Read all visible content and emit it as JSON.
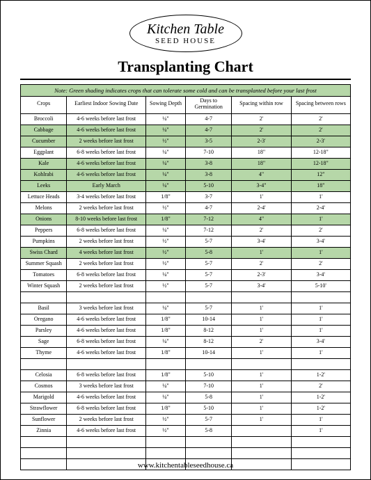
{
  "logo": {
    "top": "Kitchen Table",
    "bottom": "SEED HOUSE"
  },
  "title": "Transplanting Chart",
  "note": "Note: Green shading indicates crops that can tolerate some cold and can be transplanted before your last frost",
  "columns": [
    "Crops",
    "Earliest Indoor Sowing Date",
    "Sowing Depth",
    "Days to Germination",
    "Spacing within row",
    "Spacing between rows"
  ],
  "highlight_color": "#b6d7a8",
  "rows": [
    {
      "hl": false,
      "c": [
        "Broccoli",
        "4-6 weeks before last frost",
        "¼\"",
        "4-7",
        "2'",
        "2'"
      ]
    },
    {
      "hl": true,
      "c": [
        "Cabbage",
        "4-6 weeks before last frost",
        "¼\"",
        "4-7",
        "2'",
        "2'"
      ]
    },
    {
      "hl": true,
      "c": [
        "Cucumber",
        "2 weeks before last frost",
        "½\"",
        "3-5",
        "2-3'",
        "2-3'"
      ]
    },
    {
      "hl": false,
      "c": [
        "Eggplant",
        "6-8 weeks before last frost",
        "¼\"",
        "7-10",
        "18\"",
        "12-18\""
      ]
    },
    {
      "hl": true,
      "c": [
        "Kale",
        "4-6 weeks before last frost",
        "¼\"",
        "3-8",
        "18\"",
        "12-18\""
      ]
    },
    {
      "hl": true,
      "c": [
        "Kohlrabi",
        "4-6 weeks before last frost",
        "¼\"",
        "3-8",
        "4\"",
        "12\""
      ]
    },
    {
      "hl": true,
      "c": [
        "Leeks",
        "Early March",
        "¼\"",
        "5-10",
        "3-4\"",
        "18\""
      ]
    },
    {
      "hl": false,
      "c": [
        "Lettuce Heads",
        "3-4 weeks before last frost",
        "1/8\"",
        "3-7",
        "1'",
        "1'"
      ]
    },
    {
      "hl": false,
      "c": [
        "Melons",
        "2 weeks before last frost",
        "½\"",
        "4-7",
        "2-4'",
        "2-4'"
      ]
    },
    {
      "hl": true,
      "c": [
        "Onions",
        "8-10 weeks before last frost",
        "1/8\"",
        "7-12",
        "4\"",
        "1'"
      ]
    },
    {
      "hl": false,
      "c": [
        "Peppers",
        "6-8 weeks before last frost",
        "¼\"",
        "7-12",
        "2'",
        "2'"
      ]
    },
    {
      "hl": false,
      "c": [
        "Pumpkins",
        "2 weeks before last frost",
        "½\"",
        "5-7",
        "3-4'",
        "3-4'"
      ]
    },
    {
      "hl": true,
      "c": [
        "Swiss Chard",
        "4 weeks before last frost",
        "½\"",
        "5-8",
        "1'",
        "1'"
      ]
    },
    {
      "hl": false,
      "c": [
        "Summer Squash",
        "2 weeks before last frost",
        "½\"",
        "5-7",
        "2'",
        "2'"
      ]
    },
    {
      "hl": false,
      "c": [
        "Tomatoes",
        "6-8 weeks before last frost",
        "¼\"",
        "5-7",
        "2-3'",
        "3-4'"
      ]
    },
    {
      "hl": false,
      "c": [
        "Winter Squash",
        "2 weeks before last frost",
        "½\"",
        "5-7",
        "3-4'",
        "5-10'"
      ]
    },
    {
      "hl": false,
      "c": [
        "",
        "",
        "",
        "",
        "",
        ""
      ]
    },
    {
      "hl": false,
      "c": [
        "Basil",
        "3 weeks before last frost",
        "¼\"",
        "5-7",
        "1'",
        "1'"
      ]
    },
    {
      "hl": false,
      "c": [
        "Oregano",
        "4-6 weeks before last frost",
        "1/8\"",
        "10-14",
        "1'",
        "1'"
      ]
    },
    {
      "hl": false,
      "c": [
        "Parsley",
        "4-6 weeks before last frost",
        "1/8\"",
        "8-12",
        "1'",
        "1'"
      ]
    },
    {
      "hl": false,
      "c": [
        "Sage",
        "6-8 weeks before last frost",
        "¼\"",
        "8-12",
        "2'",
        "3-4'"
      ]
    },
    {
      "hl": false,
      "c": [
        "Thyme",
        "4-6 weeks before last frost",
        "1/8\"",
        "10-14",
        "1'",
        "1'"
      ]
    },
    {
      "hl": false,
      "c": [
        "",
        "",
        "",
        "",
        "",
        ""
      ]
    },
    {
      "hl": false,
      "c": [
        "Celosia",
        "6-8 weeks before last frost",
        "1/8\"",
        "5-10",
        "1'",
        "1-2'"
      ]
    },
    {
      "hl": false,
      "c": [
        "Cosmos",
        "3 weeks before last frost",
        "¼\"",
        "7-10",
        "1'",
        "2'"
      ]
    },
    {
      "hl": false,
      "c": [
        "Marigold",
        "4-6 weeks before last frost",
        "¼\"",
        "5-8",
        "1'",
        "1-2'"
      ]
    },
    {
      "hl": false,
      "c": [
        "Strawflower",
        "6-8 weeks before last frost",
        "1/8\"",
        "5-10",
        "1'",
        "1-2'"
      ]
    },
    {
      "hl": false,
      "c": [
        "Sunflower",
        "2 weeks before last frost",
        "½\"",
        "5-7",
        "1'",
        "1'"
      ]
    },
    {
      "hl": false,
      "c": [
        "Zinnia",
        "4-6 weeks before last frost",
        "½\"",
        "5-8",
        "",
        "1'"
      ]
    },
    {
      "hl": false,
      "c": [
        "",
        "",
        "",
        "",
        "",
        ""
      ]
    },
    {
      "hl": false,
      "c": [
        "",
        "",
        "",
        "",
        "",
        ""
      ]
    },
    {
      "hl": false,
      "c": [
        "",
        "",
        "",
        "",
        "",
        ""
      ]
    }
  ],
  "footer": "www.kitchentableseedhouse.ca"
}
